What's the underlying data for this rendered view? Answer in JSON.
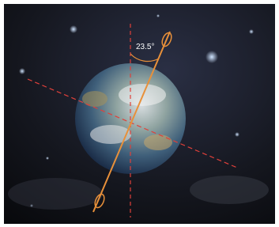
{
  "annotation": {
    "angle_label": "23.5°"
  }
}
